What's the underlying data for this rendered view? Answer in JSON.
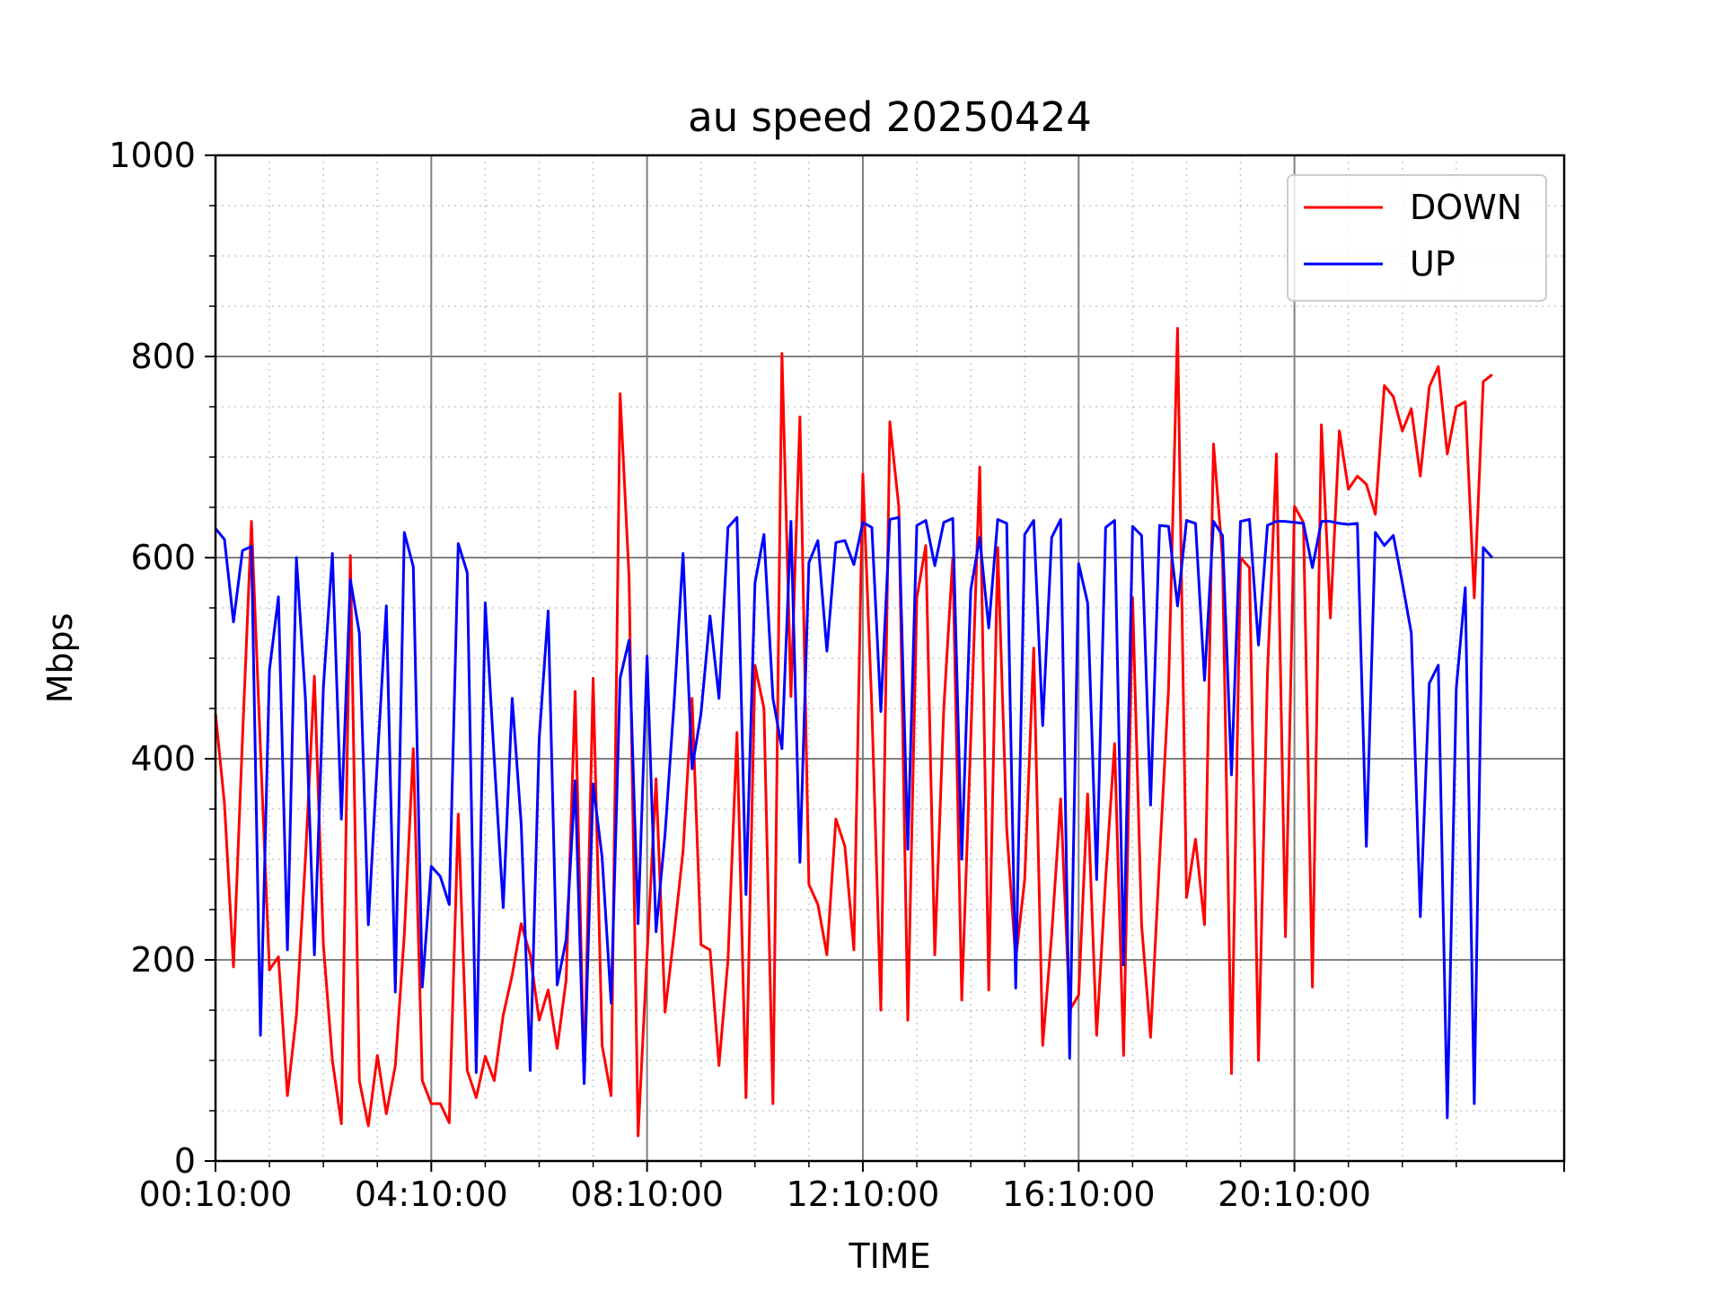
{
  "chart_data": {
    "type": "line",
    "title": "au speed 20250424",
    "xlabel": "TIME",
    "ylabel": "Mbps",
    "ylim": [
      0,
      1000
    ],
    "y_ticks": [
      0,
      200,
      400,
      600,
      800,
      1000
    ],
    "x_tick_labels": [
      "00:10:00",
      "04:10:00",
      "08:10:00",
      "12:10:00",
      "16:10:00",
      "20:10:00"
    ],
    "x_start": "00:10:00",
    "x_interval_minutes": 10,
    "grid": true,
    "legend_position": "top-right",
    "series": [
      {
        "name": "DOWN",
        "color": "#ff0000",
        "values": [
          445,
          355,
          193,
          420,
          636,
          410,
          190,
          203,
          65,
          145,
          300,
          482,
          215,
          100,
          37,
          602,
          80,
          35,
          105,
          47,
          95,
          225,
          410,
          80,
          57,
          57,
          38,
          345,
          90,
          63,
          104,
          80,
          145,
          185,
          236,
          205,
          140,
          170,
          112,
          180,
          467,
          80,
          480,
          115,
          65,
          763,
          580,
          25,
          205,
          380,
          148,
          225,
          308,
          460,
          215,
          210,
          95,
          200,
          426,
          63,
          493,
          450,
          57,
          803,
          462,
          740,
          275,
          255,
          205,
          340,
          313,
          210,
          683,
          450,
          150,
          735,
          650,
          140,
          560,
          612,
          205,
          450,
          600,
          160,
          420,
          690,
          170,
          610,
          330,
          200,
          280,
          510,
          115,
          225,
          360,
          150,
          165,
          365,
          125,
          280,
          415,
          105,
          560,
          235,
          123,
          300,
          470,
          828,
          262,
          320,
          235,
          713,
          600,
          87,
          600,
          590,
          100,
          485,
          703,
          223,
          651,
          635,
          173,
          732,
          540,
          726,
          668,
          681,
          673,
          643,
          771,
          760,
          726,
          748,
          681,
          770,
          790,
          703,
          750,
          755,
          560,
          775,
          782
        ]
      },
      {
        "name": "UP",
        "color": "#0000ff",
        "values": [
          629,
          618,
          536,
          607,
          611,
          125,
          488,
          561,
          210,
          600,
          460,
          205,
          471,
          604,
          340,
          578,
          525,
          235,
          398,
          552,
          168,
          625,
          591,
          173,
          293,
          283,
          255,
          614,
          585,
          88,
          555,
          400,
          252,
          460,
          335,
          90,
          420,
          547,
          175,
          220,
          378,
          77,
          375,
          302,
          157,
          480,
          518,
          236,
          502,
          228,
          325,
          455,
          604,
          390,
          445,
          542,
          460,
          630,
          640,
          265,
          575,
          623,
          460,
          410,
          636,
          297,
          595,
          617,
          507,
          615,
          617,
          593,
          635,
          630,
          447,
          638,
          640,
          310,
          632,
          637,
          592,
          635,
          639,
          300,
          568,
          620,
          530,
          638,
          634,
          172,
          623,
          637,
          433,
          620,
          638,
          102,
          594,
          555,
          280,
          630,
          637,
          195,
          631,
          622,
          354,
          632,
          631,
          552,
          637,
          634,
          478,
          636,
          622,
          384,
          636,
          638,
          513,
          632,
          636,
          636,
          635,
          634,
          590,
          636,
          636,
          634,
          633,
          634,
          313,
          625,
          612,
          622,
          575,
          525,
          243,
          475,
          493,
          43,
          470,
          570,
          57,
          610,
          600
        ]
      }
    ]
  }
}
